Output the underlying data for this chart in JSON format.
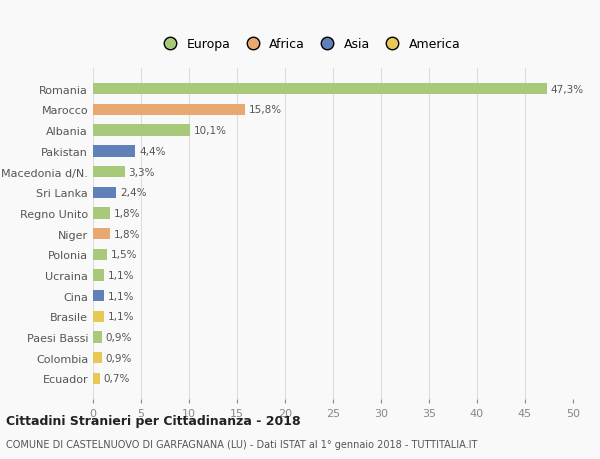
{
  "countries": [
    "Romania",
    "Marocco",
    "Albania",
    "Pakistan",
    "Macedonia d/N.",
    "Sri Lanka",
    "Regno Unito",
    "Niger",
    "Polonia",
    "Ucraina",
    "Cina",
    "Brasile",
    "Paesi Bassi",
    "Colombia",
    "Ecuador"
  ],
  "values": [
    47.3,
    15.8,
    10.1,
    4.4,
    3.3,
    2.4,
    1.8,
    1.8,
    1.5,
    1.1,
    1.1,
    1.1,
    0.9,
    0.9,
    0.7
  ],
  "labels": [
    "47,3%",
    "15,8%",
    "10,1%",
    "4,4%",
    "3,3%",
    "2,4%",
    "1,8%",
    "1,8%",
    "1,5%",
    "1,1%",
    "1,1%",
    "1,1%",
    "0,9%",
    "0,9%",
    "0,7%"
  ],
  "continents": [
    "Europa",
    "Africa",
    "Europa",
    "Asia",
    "Europa",
    "Asia",
    "Europa",
    "Africa",
    "Europa",
    "Europa",
    "Asia",
    "America",
    "Europa",
    "America",
    "America"
  ],
  "continent_colors": {
    "Europa": "#a8c87a",
    "Africa": "#e8a870",
    "Asia": "#6080b8",
    "America": "#e8c855"
  },
  "legend_items": [
    "Europa",
    "Africa",
    "Asia",
    "America"
  ],
  "legend_colors": [
    "#a8c87a",
    "#e8a870",
    "#6080b8",
    "#e8c855"
  ],
  "xlim": [
    0,
    50
  ],
  "xticks": [
    0,
    5,
    10,
    15,
    20,
    25,
    30,
    35,
    40,
    45,
    50
  ],
  "title": "Cittadini Stranieri per Cittadinanza - 2018",
  "subtitle": "COMUNE DI CASTELNUOVO DI GARFAGNANA (LU) - Dati ISTAT al 1° gennaio 2018 - TUTTITALIA.IT",
  "bg_color": "#f9f9f9",
  "grid_color": "#dddddd",
  "bar_height": 0.55,
  "label_fontsize": 7.5,
  "ytick_fontsize": 8,
  "xtick_fontsize": 8
}
